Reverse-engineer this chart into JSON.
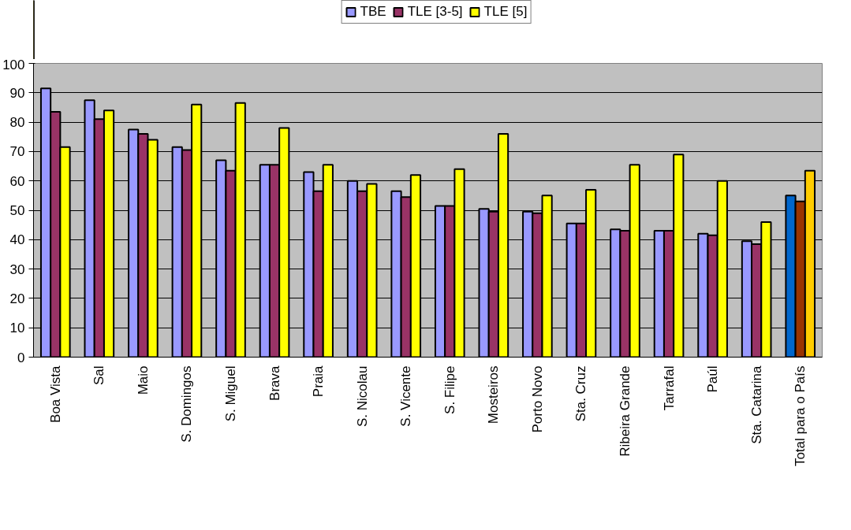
{
  "chart_data": {
    "type": "bar",
    "categories": [
      "Boa Vista",
      "Sal",
      "Maio",
      "S. Domingos",
      "S. Miguel",
      "Brava",
      "Praia",
      "S. Nicolau",
      "S. Vicente",
      "S. Filipe",
      "Mosteiros",
      "Porto Novo",
      "Sta. Cruz",
      "Ribeira Grande",
      "Tarrafal",
      "Paúl",
      "Sta. Catarina",
      "Total para o País"
    ],
    "series": [
      {
        "name": "TBE",
        "color": "#9999ff",
        "colors": [
          "#9999ff",
          "#9999ff",
          "#9999ff",
          "#9999ff",
          "#9999ff",
          "#9999ff",
          "#9999ff",
          "#9999ff",
          "#9999ff",
          "#9999ff",
          "#9999ff",
          "#9999ff",
          "#9999ff",
          "#9999ff",
          "#9999ff",
          "#9999ff",
          "#9999ff",
          "#0066cc"
        ],
        "values": [
          91.5,
          87.5,
          77.5,
          71.5,
          67,
          65.5,
          63,
          60,
          56.5,
          51.5,
          50.5,
          49.5,
          45.5,
          43.5,
          43,
          42,
          39.5,
          55
        ]
      },
      {
        "name": "TLE [3-5]",
        "color": "#993366",
        "colors": [
          "#993366",
          "#993366",
          "#993366",
          "#993366",
          "#993366",
          "#993366",
          "#993366",
          "#993366",
          "#993366",
          "#993366",
          "#993366",
          "#993366",
          "#993366",
          "#993366",
          "#993366",
          "#993366",
          "#993366",
          "#993300"
        ],
        "values": [
          83.5,
          81,
          76,
          70.5,
          63.5,
          65.5,
          56.5,
          56.5,
          54.5,
          51.5,
          49.5,
          49,
          45.5,
          43,
          43,
          41.5,
          38.5,
          53
        ]
      },
      {
        "name": "TLE [5]",
        "color": "#ffff00",
        "colors": [
          "#ffff00",
          "#ffff00",
          "#ffff00",
          "#ffff00",
          "#ffff00",
          "#ffff00",
          "#ffff00",
          "#ffff00",
          "#ffff00",
          "#ffff00",
          "#ffff00",
          "#ffff00",
          "#ffff00",
          "#ffff00",
          "#ffff00",
          "#ffff00",
          "#ffff00",
          "#ffcc00"
        ],
        "values": [
          71.5,
          84,
          74,
          86,
          86.5,
          78,
          65.5,
          59,
          62,
          64,
          76,
          55,
          57,
          65.5,
          69,
          60,
          46,
          63.5
        ]
      }
    ],
    "ylim": [
      0,
      100
    ],
    "yticks": [
      0,
      10,
      20,
      30,
      40,
      50,
      60,
      70,
      80,
      90,
      100
    ],
    "grid": "y",
    "legend": "top"
  }
}
